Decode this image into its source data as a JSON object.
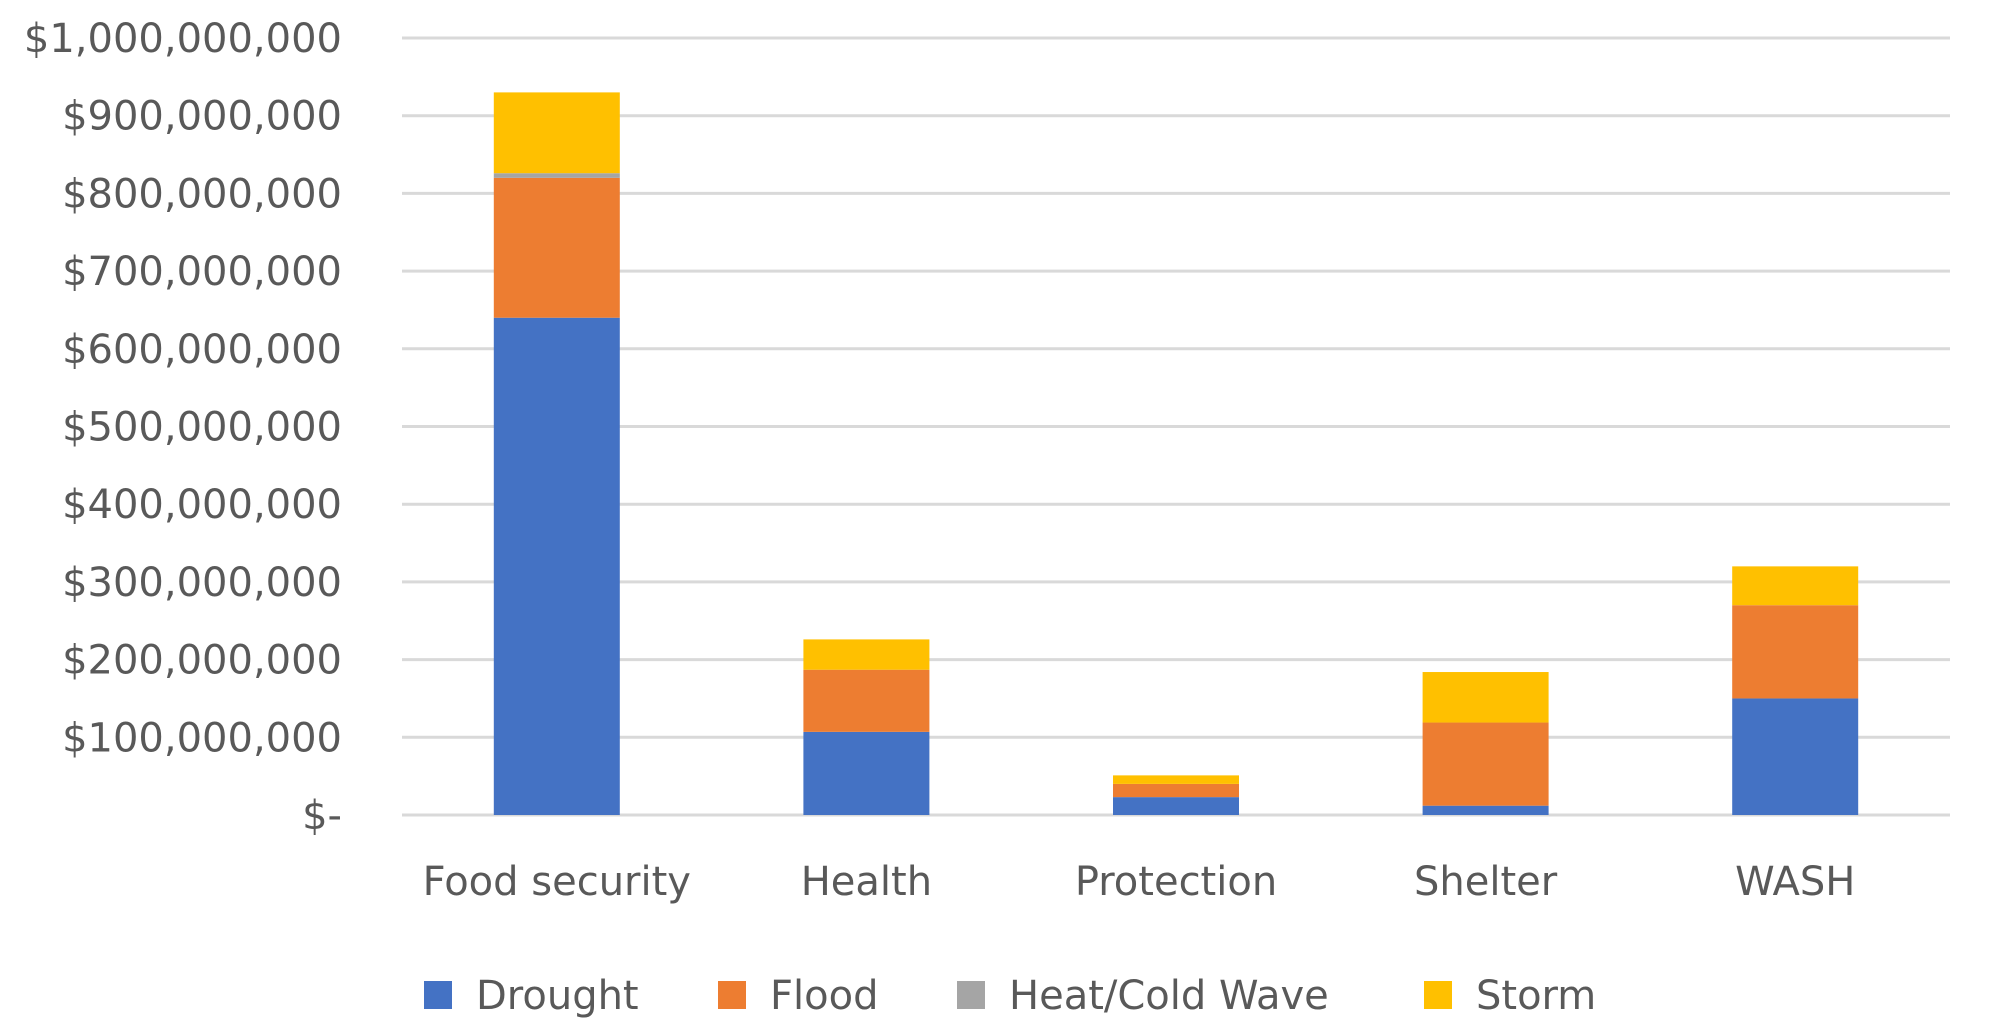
{
  "chart_data": {
    "type": "bar",
    "stacked": true,
    "title": "",
    "xlabel": "",
    "ylabel": "",
    "categories": [
      "Food security",
      "Health",
      "Protection",
      "Shelter",
      "WASH"
    ],
    "series": [
      {
        "name": "Drought",
        "color": "#4472C4",
        "values": [
          640000000,
          107000000,
          23000000,
          12000000,
          150000000
        ]
      },
      {
        "name": "Flood",
        "color": "#ED7D31",
        "values": [
          180000000,
          80000000,
          17000000,
          107000000,
          120000000
        ]
      },
      {
        "name": "Heat/Cold Wave",
        "color": "#A5A5A5",
        "values": [
          6000000,
          0,
          0,
          0,
          0
        ]
      },
      {
        "name": "Storm",
        "color": "#FFC000",
        "values": [
          104000000,
          39000000,
          11000000,
          65000000,
          50000000
        ]
      }
    ],
    "ylim": [
      0,
      1000000000
    ],
    "yticks": [
      0,
      100000000,
      200000000,
      300000000,
      400000000,
      500000000,
      600000000,
      700000000,
      800000000,
      900000000,
      1000000000
    ],
    "ytick_labels": [
      "$-",
      "$100,000,000",
      "$200,000,000",
      "$300,000,000",
      "$400,000,000",
      "$500,000,000",
      "$600,000,000",
      "$700,000,000",
      "$800,000,000",
      "$900,000,000",
      "$1,000,000,000"
    ],
    "grid": true,
    "gridline_color": "#D9D9D9",
    "legend_position": "bottom"
  }
}
